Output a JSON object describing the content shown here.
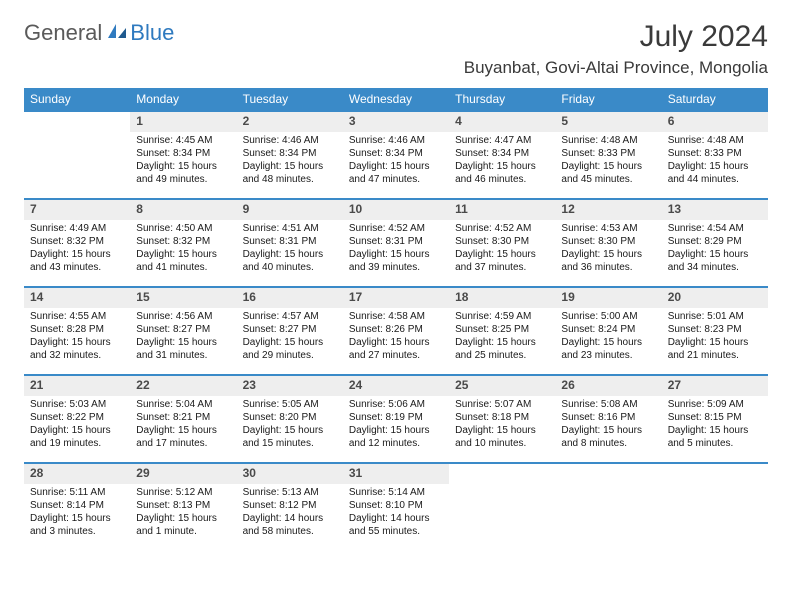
{
  "logo": {
    "part1": "General",
    "part2": "Blue"
  },
  "title": "July 2024",
  "location": "Buyanbat, Govi-Altai Province, Mongolia",
  "colors": {
    "header_bg": "#3a8ac8",
    "header_fg": "#ffffff",
    "daynum_bg": "#eeeeee",
    "daynum_fg": "#4a4a4a",
    "row_border": "#3a8ac8",
    "logo_gray": "#5a5a5a",
    "logo_blue": "#2f7abf",
    "text": "#1a1a1a",
    "background": "#ffffff"
  },
  "typography": {
    "month_fontsize": 30,
    "location_fontsize": 17,
    "header_fontsize": 12,
    "daynum_fontsize": 12,
    "body_fontsize": 10,
    "logo_fontsize": 22
  },
  "calendar": {
    "type": "table",
    "columns": [
      "Sunday",
      "Monday",
      "Tuesday",
      "Wednesday",
      "Thursday",
      "Friday",
      "Saturday"
    ],
    "weeks": [
      {
        "days": [
          null,
          {
            "num": "1",
            "sunrise": "Sunrise: 4:45 AM",
            "sunset": "Sunset: 8:34 PM",
            "daylight": "Daylight: 15 hours and 49 minutes."
          },
          {
            "num": "2",
            "sunrise": "Sunrise: 4:46 AM",
            "sunset": "Sunset: 8:34 PM",
            "daylight": "Daylight: 15 hours and 48 minutes."
          },
          {
            "num": "3",
            "sunrise": "Sunrise: 4:46 AM",
            "sunset": "Sunset: 8:34 PM",
            "daylight": "Daylight: 15 hours and 47 minutes."
          },
          {
            "num": "4",
            "sunrise": "Sunrise: 4:47 AM",
            "sunset": "Sunset: 8:34 PM",
            "daylight": "Daylight: 15 hours and 46 minutes."
          },
          {
            "num": "5",
            "sunrise": "Sunrise: 4:48 AM",
            "sunset": "Sunset: 8:33 PM",
            "daylight": "Daylight: 15 hours and 45 minutes."
          },
          {
            "num": "6",
            "sunrise": "Sunrise: 4:48 AM",
            "sunset": "Sunset: 8:33 PM",
            "daylight": "Daylight: 15 hours and 44 minutes."
          }
        ]
      },
      {
        "days": [
          {
            "num": "7",
            "sunrise": "Sunrise: 4:49 AM",
            "sunset": "Sunset: 8:32 PM",
            "daylight": "Daylight: 15 hours and 43 minutes."
          },
          {
            "num": "8",
            "sunrise": "Sunrise: 4:50 AM",
            "sunset": "Sunset: 8:32 PM",
            "daylight": "Daylight: 15 hours and 41 minutes."
          },
          {
            "num": "9",
            "sunrise": "Sunrise: 4:51 AM",
            "sunset": "Sunset: 8:31 PM",
            "daylight": "Daylight: 15 hours and 40 minutes."
          },
          {
            "num": "10",
            "sunrise": "Sunrise: 4:52 AM",
            "sunset": "Sunset: 8:31 PM",
            "daylight": "Daylight: 15 hours and 39 minutes."
          },
          {
            "num": "11",
            "sunrise": "Sunrise: 4:52 AM",
            "sunset": "Sunset: 8:30 PM",
            "daylight": "Daylight: 15 hours and 37 minutes."
          },
          {
            "num": "12",
            "sunrise": "Sunrise: 4:53 AM",
            "sunset": "Sunset: 8:30 PM",
            "daylight": "Daylight: 15 hours and 36 minutes."
          },
          {
            "num": "13",
            "sunrise": "Sunrise: 4:54 AM",
            "sunset": "Sunset: 8:29 PM",
            "daylight": "Daylight: 15 hours and 34 minutes."
          }
        ]
      },
      {
        "days": [
          {
            "num": "14",
            "sunrise": "Sunrise: 4:55 AM",
            "sunset": "Sunset: 8:28 PM",
            "daylight": "Daylight: 15 hours and 32 minutes."
          },
          {
            "num": "15",
            "sunrise": "Sunrise: 4:56 AM",
            "sunset": "Sunset: 8:27 PM",
            "daylight": "Daylight: 15 hours and 31 minutes."
          },
          {
            "num": "16",
            "sunrise": "Sunrise: 4:57 AM",
            "sunset": "Sunset: 8:27 PM",
            "daylight": "Daylight: 15 hours and 29 minutes."
          },
          {
            "num": "17",
            "sunrise": "Sunrise: 4:58 AM",
            "sunset": "Sunset: 8:26 PM",
            "daylight": "Daylight: 15 hours and 27 minutes."
          },
          {
            "num": "18",
            "sunrise": "Sunrise: 4:59 AM",
            "sunset": "Sunset: 8:25 PM",
            "daylight": "Daylight: 15 hours and 25 minutes."
          },
          {
            "num": "19",
            "sunrise": "Sunrise: 5:00 AM",
            "sunset": "Sunset: 8:24 PM",
            "daylight": "Daylight: 15 hours and 23 minutes."
          },
          {
            "num": "20",
            "sunrise": "Sunrise: 5:01 AM",
            "sunset": "Sunset: 8:23 PM",
            "daylight": "Daylight: 15 hours and 21 minutes."
          }
        ]
      },
      {
        "days": [
          {
            "num": "21",
            "sunrise": "Sunrise: 5:03 AM",
            "sunset": "Sunset: 8:22 PM",
            "daylight": "Daylight: 15 hours and 19 minutes."
          },
          {
            "num": "22",
            "sunrise": "Sunrise: 5:04 AM",
            "sunset": "Sunset: 8:21 PM",
            "daylight": "Daylight: 15 hours and 17 minutes."
          },
          {
            "num": "23",
            "sunrise": "Sunrise: 5:05 AM",
            "sunset": "Sunset: 8:20 PM",
            "daylight": "Daylight: 15 hours and 15 minutes."
          },
          {
            "num": "24",
            "sunrise": "Sunrise: 5:06 AM",
            "sunset": "Sunset: 8:19 PM",
            "daylight": "Daylight: 15 hours and 12 minutes."
          },
          {
            "num": "25",
            "sunrise": "Sunrise: 5:07 AM",
            "sunset": "Sunset: 8:18 PM",
            "daylight": "Daylight: 15 hours and 10 minutes."
          },
          {
            "num": "26",
            "sunrise": "Sunrise: 5:08 AM",
            "sunset": "Sunset: 8:16 PM",
            "daylight": "Daylight: 15 hours and 8 minutes."
          },
          {
            "num": "27",
            "sunrise": "Sunrise: 5:09 AM",
            "sunset": "Sunset: 8:15 PM",
            "daylight": "Daylight: 15 hours and 5 minutes."
          }
        ]
      },
      {
        "days": [
          {
            "num": "28",
            "sunrise": "Sunrise: 5:11 AM",
            "sunset": "Sunset: 8:14 PM",
            "daylight": "Daylight: 15 hours and 3 minutes."
          },
          {
            "num": "29",
            "sunrise": "Sunrise: 5:12 AM",
            "sunset": "Sunset: 8:13 PM",
            "daylight": "Daylight: 15 hours and 1 minute."
          },
          {
            "num": "30",
            "sunrise": "Sunrise: 5:13 AM",
            "sunset": "Sunset: 8:12 PM",
            "daylight": "Daylight: 14 hours and 58 minutes."
          },
          {
            "num": "31",
            "sunrise": "Sunrise: 5:14 AM",
            "sunset": "Sunset: 8:10 PM",
            "daylight": "Daylight: 14 hours and 55 minutes."
          },
          null,
          null,
          null
        ]
      }
    ]
  }
}
